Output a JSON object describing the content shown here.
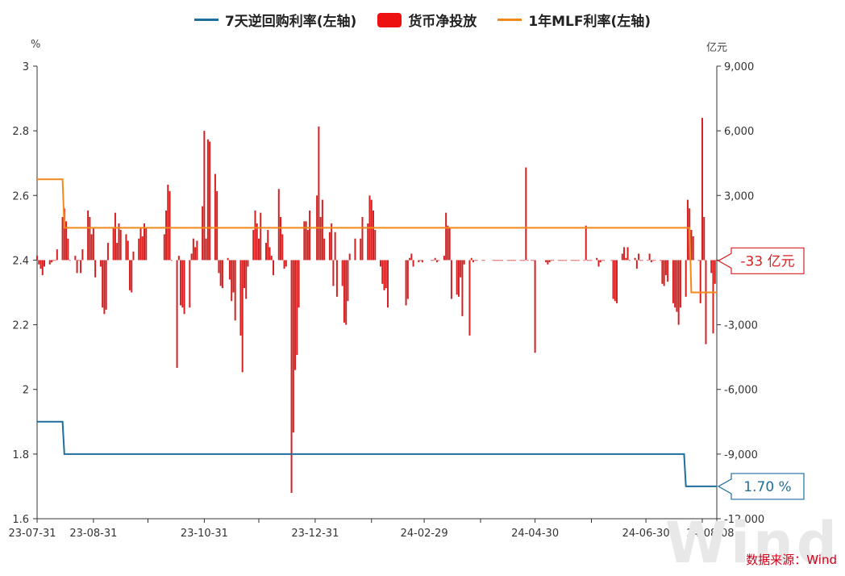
{
  "legend": {
    "repo": "7天逆回购利率(左轴)",
    "net": "货币净投放",
    "mlf": "1年MLF利率(左轴)"
  },
  "units": {
    "left": "%",
    "right": "亿元"
  },
  "source": "数据来源：Wind",
  "watermark": "Wind",
  "colors": {
    "repo": "#1f6e9c",
    "net": "#d42020",
    "mlf": "#f28a1a",
    "legend_net": "#ee1111"
  },
  "chart_data": {
    "type": "bar+line",
    "x_ticks": [
      "23-07-31",
      "23-08-31",
      "23-10-31",
      "23-12-31",
      "24-02-29",
      "24-04-30",
      "24-06-30",
      "24-08-08"
    ],
    "left_axis": {
      "unit": "%",
      "min": 1.6,
      "max": 3.0,
      "ticks": [
        "1.6",
        "1.8",
        "2",
        "2.2",
        "2.4",
        "2.6",
        "2.8",
        "3"
      ]
    },
    "right_axis": {
      "unit": "亿元",
      "min": -12000,
      "max": 9000,
      "ticks": [
        "-12,000",
        "-9,000",
        "-6,000",
        "-3,000",
        "0",
        "3,000",
        "6,000",
        "9,000"
      ]
    },
    "series": [
      {
        "name": "7天逆回购利率(左轴)",
        "axis": "left",
        "points": [
          [
            "2023-07-31",
            1.9
          ],
          [
            "2023-08-14",
            1.9
          ],
          [
            "2023-08-15",
            1.8
          ],
          [
            "2024-07-21",
            1.8
          ],
          [
            "2024-07-22",
            1.7
          ],
          [
            "2024-08-08",
            1.7
          ]
        ],
        "last_label": "1.70 %"
      },
      {
        "name": "1年MLF利率(左轴)",
        "axis": "left",
        "points": [
          [
            "2023-07-31",
            2.65
          ],
          [
            "2023-08-14",
            2.65
          ],
          [
            "2023-08-15",
            2.5
          ],
          [
            "2024-07-24",
            2.5
          ],
          [
            "2024-07-25",
            2.3
          ],
          [
            "2024-08-08",
            2.3
          ]
        ]
      },
      {
        "name": "货币净投放",
        "axis": "right",
        "last_label": "-33 亿元",
        "bars": [
          [
            "2023-07-31",
            200
          ],
          [
            "2023-08-01",
            -200
          ],
          [
            "2023-08-02",
            -400
          ],
          [
            "2023-08-03",
            -700
          ],
          [
            "2023-08-04",
            -300
          ],
          [
            "2023-08-07",
            -200
          ],
          [
            "2023-08-08",
            -100
          ],
          [
            "2023-08-09",
            0
          ],
          [
            "2023-08-10",
            0
          ],
          [
            "2023-08-11",
            500
          ],
          [
            "2023-08-14",
            2000
          ],
          [
            "2023-08-15",
            2400
          ],
          [
            "2023-08-16",
            1800
          ],
          [
            "2023-08-17",
            1000
          ],
          [
            "2023-08-18",
            0
          ],
          [
            "2023-08-21",
            200
          ],
          [
            "2023-08-22",
            -600
          ],
          [
            "2023-08-23",
            0
          ],
          [
            "2023-08-24",
            -600
          ],
          [
            "2023-08-25",
            500
          ],
          [
            "2023-08-28",
            2300
          ],
          [
            "2023-08-29",
            2000
          ],
          [
            "2023-08-30",
            1200
          ],
          [
            "2023-08-31",
            1500
          ],
          [
            "2023-09-01",
            -800
          ],
          [
            "2023-09-04",
            -300
          ],
          [
            "2023-09-05",
            -2200
          ],
          [
            "2023-09-06",
            -2500
          ],
          [
            "2023-09-07",
            -2300
          ],
          [
            "2023-09-08",
            800
          ],
          [
            "2023-09-11",
            1500
          ],
          [
            "2023-09-12",
            2200
          ],
          [
            "2023-09-13",
            800
          ],
          [
            "2023-09-14",
            1700
          ],
          [
            "2023-09-15",
            1400
          ],
          [
            "2023-09-18",
            1200
          ],
          [
            "2023-09-19",
            900
          ],
          [
            "2023-09-20",
            -1400
          ],
          [
            "2023-09-21",
            -1500
          ],
          [
            "2023-09-22",
            400
          ],
          [
            "2023-09-25",
            1000
          ],
          [
            "2023-09-26",
            1500
          ],
          [
            "2023-09-27",
            1100
          ],
          [
            "2023-09-28",
            1700
          ],
          [
            "2023-09-29",
            1500
          ],
          [
            "2023-10-09",
            1200
          ],
          [
            "2023-10-10",
            2300
          ],
          [
            "2023-10-11",
            3500
          ],
          [
            "2023-10-12",
            3200
          ],
          [
            "2023-10-13",
            0
          ],
          [
            "2023-10-16",
            -5000
          ],
          [
            "2023-10-17",
            200
          ],
          [
            "2023-10-18",
            -2100
          ],
          [
            "2023-10-19",
            -2200
          ],
          [
            "2023-10-20",
            -2500
          ],
          [
            "2023-10-23",
            -2200
          ],
          [
            "2023-10-24",
            300
          ],
          [
            "2023-10-25",
            1000
          ],
          [
            "2023-10-26",
            600
          ],
          [
            "2023-10-27",
            900
          ],
          [
            "2023-10-30",
            2500
          ],
          [
            "2023-10-31",
            6000
          ],
          [
            "2023-11-01",
            1000
          ],
          [
            "2023-11-02",
            5600
          ],
          [
            "2023-11-03",
            5500
          ],
          [
            "2023-11-06",
            4000
          ],
          [
            "2023-11-07",
            3200
          ],
          [
            "2023-11-08",
            -600
          ],
          [
            "2023-11-09",
            -1200
          ],
          [
            "2023-11-10",
            -1300
          ],
          [
            "2023-11-13",
            100
          ],
          [
            "2023-11-14",
            -900
          ],
          [
            "2023-11-15",
            -1900
          ],
          [
            "2023-11-16",
            -1500
          ],
          [
            "2023-11-17",
            -2800
          ],
          [
            "2023-11-20",
            -3500
          ],
          [
            "2023-11-21",
            -5200
          ],
          [
            "2023-11-22",
            -1300
          ],
          [
            "2023-11-23",
            -1800
          ],
          [
            "2023-11-24",
            -300
          ],
          [
            "2023-11-27",
            1400
          ],
          [
            "2023-11-28",
            2300
          ],
          [
            "2023-11-29",
            1700
          ],
          [
            "2023-11-30",
            1000
          ],
          [
            "2023-12-01",
            2200
          ],
          [
            "2023-12-04",
            800
          ],
          [
            "2023-12-05",
            1400
          ],
          [
            "2023-12-06",
            600
          ],
          [
            "2023-12-07",
            200
          ],
          [
            "2023-12-08",
            -700
          ],
          [
            "2023-12-11",
            3300
          ],
          [
            "2023-12-12",
            2000
          ],
          [
            "2023-12-13",
            1200
          ],
          [
            "2023-12-14",
            -400
          ],
          [
            "2023-12-15",
            -300
          ],
          [
            "2023-12-18",
            -10800
          ],
          [
            "2023-12-19",
            -8000
          ],
          [
            "2023-12-20",
            -5100
          ],
          [
            "2023-12-21",
            -4400
          ],
          [
            "2023-12-22",
            -2200
          ],
          [
            "2023-12-25",
            1800
          ],
          [
            "2023-12-26",
            1800
          ],
          [
            "2023-12-27",
            1400
          ],
          [
            "2023-12-28",
            2300
          ],
          [
            "2024-01-01",
            3000
          ],
          [
            "2024-01-02",
            6200
          ],
          [
            "2024-01-03",
            2000
          ],
          [
            "2024-01-04",
            2800
          ],
          [
            "2024-01-05",
            1000
          ],
          [
            "2024-01-08",
            1300
          ],
          [
            "2024-01-09",
            1700
          ],
          [
            "2024-01-10",
            -1200
          ],
          [
            "2024-01-11",
            1300
          ],
          [
            "2024-01-12",
            -1700
          ],
          [
            "2024-01-15",
            -1200
          ],
          [
            "2024-01-16",
            -2900
          ],
          [
            "2024-01-17",
            -3000
          ],
          [
            "2024-01-18",
            -1900
          ],
          [
            "2024-01-19",
            300
          ],
          [
            "2024-01-22",
            1000
          ],
          [
            "2024-01-25",
            1000
          ],
          [
            "2024-01-26",
            2000
          ],
          [
            "2024-01-29",
            1700
          ],
          [
            "2024-01-30",
            3000
          ],
          [
            "2024-01-31",
            2800
          ],
          [
            "2024-02-01",
            2300
          ],
          [
            "2024-02-02",
            1400
          ],
          [
            "2024-02-05",
            -300
          ],
          [
            "2024-02-06",
            -1100
          ],
          [
            "2024-02-07",
            -1400
          ],
          [
            "2024-02-08",
            -1300
          ],
          [
            "2024-02-09",
            -2200
          ],
          [
            "2024-02-19",
            -2100
          ],
          [
            "2024-02-20",
            -1800
          ],
          [
            "2024-02-21",
            100
          ],
          [
            "2024-02-22",
            300
          ],
          [
            "2024-02-23",
            -300
          ],
          [
            "2024-02-26",
            -100
          ],
          [
            "2024-02-27",
            0
          ],
          [
            "2024-02-28",
            -100
          ],
          [
            "2024-03-04",
            0
          ],
          [
            "2024-03-05",
            0
          ],
          [
            "2024-03-06",
            100
          ],
          [
            "2024-03-07",
            -100
          ],
          [
            "2024-03-08",
            0
          ],
          [
            "2024-03-11",
            200
          ],
          [
            "2024-03-12",
            2200
          ],
          [
            "2024-03-13",
            1600
          ],
          [
            "2024-03-14",
            1500
          ],
          [
            "2024-03-15",
            -1800
          ],
          [
            "2024-03-18",
            -1600
          ],
          [
            "2024-03-19",
            -1700
          ],
          [
            "2024-03-20",
            -800
          ],
          [
            "2024-03-21",
            -2600
          ],
          [
            "2024-03-22",
            -200
          ],
          [
            "2024-03-25",
            -3500
          ],
          [
            "2024-03-26",
            100
          ],
          [
            "2024-03-27",
            -100
          ],
          [
            "2024-03-28",
            0
          ],
          [
            "2024-03-29",
            0
          ],
          [
            "2024-04-01",
            0
          ],
          [
            "2024-04-02",
            0
          ],
          [
            "2024-04-07",
            0
          ],
          [
            "2024-04-08",
            0
          ],
          [
            "2024-04-09",
            0
          ],
          [
            "2024-04-10",
            0
          ],
          [
            "2024-04-11",
            0
          ],
          [
            "2024-04-12",
            0
          ],
          [
            "2024-04-15",
            0
          ],
          [
            "2024-04-16",
            0
          ],
          [
            "2024-04-17",
            0
          ],
          [
            "2024-04-18",
            0
          ],
          [
            "2024-04-19",
            0
          ],
          [
            "2024-04-22",
            0
          ],
          [
            "2024-04-23",
            0
          ],
          [
            "2024-04-24",
            0
          ],
          [
            "2024-04-25",
            4300
          ],
          [
            "2024-04-26",
            0
          ],
          [
            "2024-04-28",
            0
          ],
          [
            "2024-04-29",
            0
          ],
          [
            "2024-04-30",
            -4300
          ],
          [
            "2024-05-06",
            -100
          ],
          [
            "2024-05-07",
            -200
          ],
          [
            "2024-05-08",
            -100
          ],
          [
            "2024-05-09",
            0
          ],
          [
            "2024-05-10",
            0
          ],
          [
            "2024-05-13",
            0
          ],
          [
            "2024-05-14",
            0
          ],
          [
            "2024-05-15",
            0
          ],
          [
            "2024-05-16",
            0
          ],
          [
            "2024-05-17",
            0
          ],
          [
            "2024-05-20",
            0
          ],
          [
            "2024-05-21",
            0
          ],
          [
            "2024-05-22",
            0
          ],
          [
            "2024-05-23",
            0
          ],
          [
            "2024-05-24",
            0
          ],
          [
            "2024-05-27",
            0
          ],
          [
            "2024-05-28",
            1600
          ],
          [
            "2024-05-29",
            0
          ],
          [
            "2024-05-30",
            0
          ],
          [
            "2024-05-31",
            0
          ],
          [
            "2024-06-03",
            100
          ],
          [
            "2024-06-04",
            -300
          ],
          [
            "2024-06-05",
            -100
          ],
          [
            "2024-06-06",
            0
          ],
          [
            "2024-06-07",
            0
          ],
          [
            "2024-06-11",
            0
          ],
          [
            "2024-06-12",
            -1800
          ],
          [
            "2024-06-13",
            -1900
          ],
          [
            "2024-06-14",
            -2000
          ],
          [
            "2024-06-17",
            300
          ],
          [
            "2024-06-18",
            600
          ],
          [
            "2024-06-19",
            100
          ],
          [
            "2024-06-20",
            600
          ],
          [
            "2024-06-21",
            0
          ],
          [
            "2024-06-24",
            100
          ],
          [
            "2024-06-25",
            -400
          ],
          [
            "2024-06-26",
            300
          ],
          [
            "2024-06-27",
            0
          ],
          [
            "2024-06-28",
            0
          ],
          [
            "2024-07-01",
            0
          ],
          [
            "2024-07-02",
            300
          ],
          [
            "2024-07-03",
            -100
          ],
          [
            "2024-07-04",
            0
          ],
          [
            "2024-07-05",
            0
          ],
          [
            "2024-07-08",
            0
          ],
          [
            "2024-07-09",
            -1100
          ],
          [
            "2024-07-10",
            -1200
          ],
          [
            "2024-07-11",
            -700
          ],
          [
            "2024-07-12",
            -1000
          ],
          [
            "2024-07-15",
            -2000
          ],
          [
            "2024-07-16",
            -2200
          ],
          [
            "2024-07-17",
            -2400
          ],
          [
            "2024-07-18",
            -3000
          ],
          [
            "2024-07-19",
            -2200
          ],
          [
            "2024-07-22",
            -1700
          ],
          [
            "2024-07-23",
            2800
          ],
          [
            "2024-07-24",
            2400
          ],
          [
            "2024-07-25",
            1400
          ],
          [
            "2024-07-26",
            1100
          ],
          [
            "2024-07-29",
            0
          ],
          [
            "2024-07-30",
            -2000
          ],
          [
            "2024-07-31",
            6600
          ],
          [
            "2024-08-01",
            2000
          ],
          [
            "2024-08-02",
            -3900
          ],
          [
            "2024-08-05",
            -600
          ],
          [
            "2024-08-06",
            -3400
          ],
          [
            "2024-08-07",
            -1100
          ],
          [
            "2024-08-08",
            -33
          ]
        ]
      }
    ],
    "grid": false
  }
}
